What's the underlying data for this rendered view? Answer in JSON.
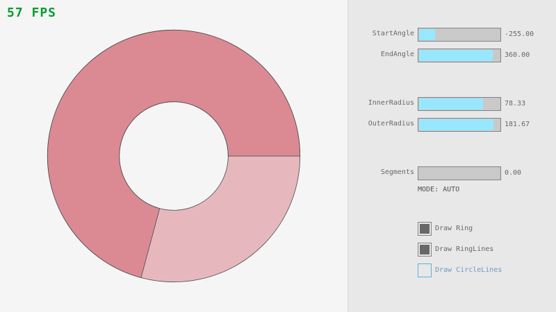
{
  "fps": "57 FPS",
  "ring": {
    "center_note": "",
    "start_angle": -255,
    "end_angle": 360,
    "inner_radius": 78.33,
    "outer_radius": 181.67,
    "fill_color": "#e6b8bd",
    "overlap_color": "#db8a93",
    "line_color": "#4a4a4a"
  },
  "controls": {
    "sliders": [
      {
        "label": "StartAngle",
        "value": "-255.00",
        "fill": 0.2
      },
      {
        "label": "EndAngle",
        "value": "360.00",
        "fill": 0.91
      },
      {
        "label": "InnerRadius",
        "value": "78.33",
        "fill": 0.79
      },
      {
        "label": "OuterRadius",
        "value": "181.67",
        "fill": 0.92
      },
      {
        "label": "Segments",
        "value": "0.00",
        "fill": 0
      }
    ],
    "mode": "MODE: AUTO",
    "checkboxes": [
      {
        "label": "Draw Ring",
        "checked": true
      },
      {
        "label": "Draw RingLines",
        "checked": true
      },
      {
        "label": "Draw CircleLines",
        "checked": false
      }
    ]
  },
  "colors": {
    "slider_fill": "#97e8ff",
    "fps": "#009e2f"
  }
}
